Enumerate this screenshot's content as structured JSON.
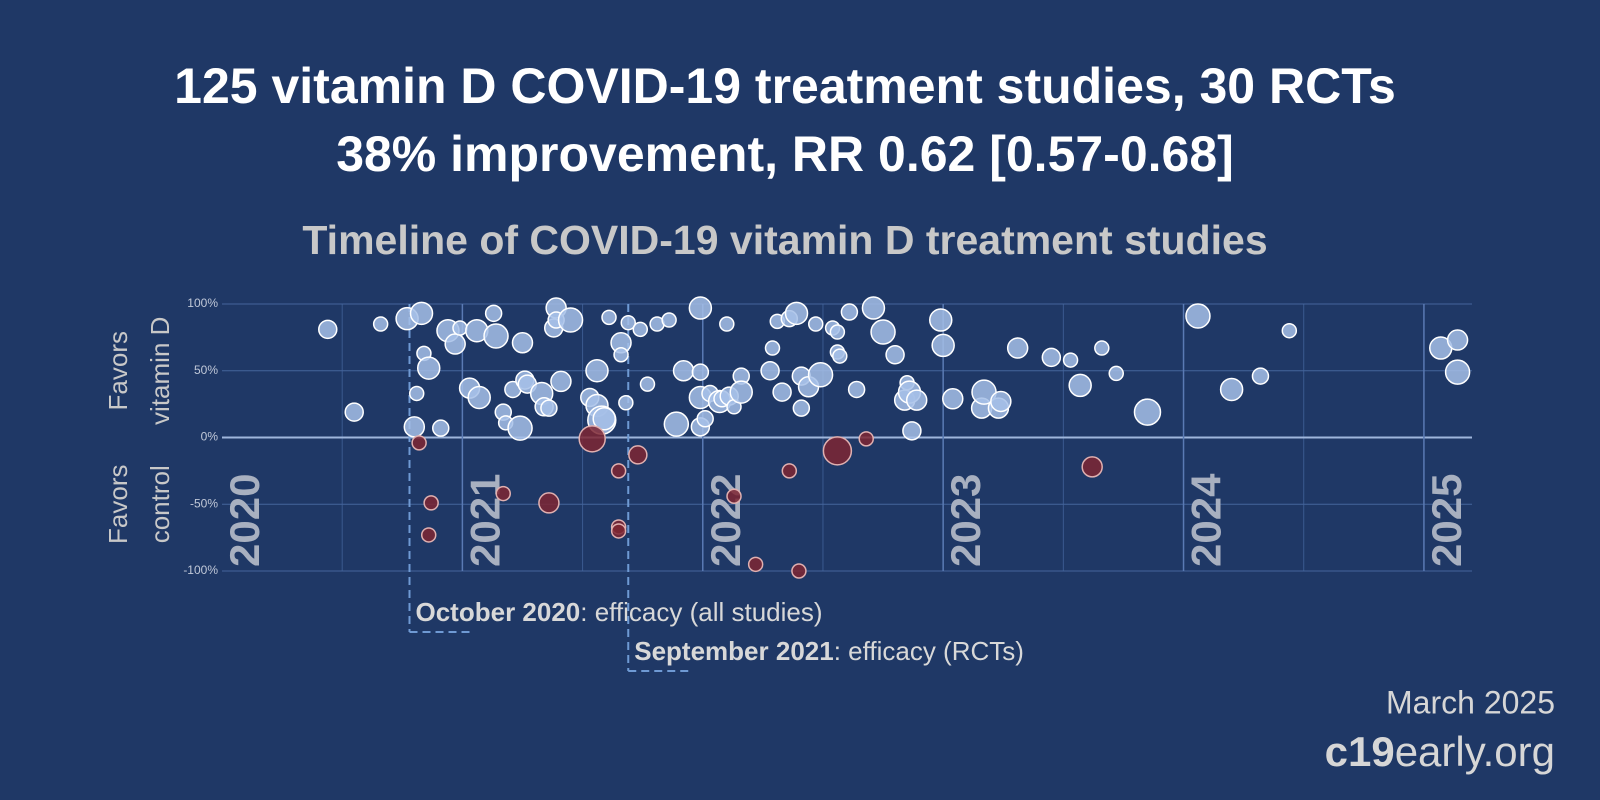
{
  "chart_data": {
    "type": "bubble",
    "title": [
      "125 vitamin D COVID-19 treatment studies, 30 RCTs",
      "38% improvement, RR 0.62 [0.57-0.68]"
    ],
    "subtitle": "Timeline of COVID-19 vitamin D treatment studies",
    "xlim": [
      2020,
      2025.2
    ],
    "xticks": [
      2020,
      2021,
      2022,
      2023,
      2024,
      2025
    ],
    "xgrid_minor": [
      2020.5,
      2021.5,
      2022.5,
      2023.5,
      2024.5
    ],
    "ylim": [
      -100,
      100
    ],
    "yticks": [
      {
        "value": 100,
        "label": "100%"
      },
      {
        "value": 50,
        "label": "50%"
      },
      {
        "value": 0,
        "label": "0%"
      },
      {
        "value": -50,
        "label": "-50%"
      },
      {
        "value": -100,
        "label": "-100%"
      }
    ],
    "grid": true,
    "y_labels": [
      {
        "lines": [
          "Favors",
          "vitamin D"
        ],
        "y": 50
      },
      {
        "lines": [
          "Favors",
          "control"
        ],
        "y": -50
      }
    ],
    "series": [
      {
        "color": "#a6c0e8",
        "stroke": "#ffffff",
        "x": [
          2020.44,
          2020.55,
          2020.66,
          2020.77,
          2020.83,
          2020.8,
          2020.81,
          2020.84,
          2020.86,
          2020.91,
          2020.94,
          2020.97,
          2020.99,
          2021.03,
          2021.06,
          2021.07,
          2021.13,
          2021.14,
          2021.17,
          2021.18,
          2021.21,
          2021.24,
          2021.25,
          2021.26,
          2021.27,
          2021.33,
          2021.34,
          2021.36,
          2021.38,
          2021.39,
          2021.39,
          2021.41,
          2021.45,
          2021.53,
          2021.56,
          2021.56,
          2021.58,
          2021.59,
          2021.61,
          2021.66,
          2021.66,
          2021.68,
          2021.69,
          2021.74,
          2021.77,
          2021.81,
          2021.86,
          2021.89,
          2021.92,
          2021.99,
          2021.99,
          2021.99,
          2021.99,
          2022.01,
          2022.03,
          2022.07,
          2022.08,
          2022.1,
          2022.11,
          2022.13,
          2022.16,
          2022.16,
          2022.28,
          2022.29,
          2022.31,
          2022.33,
          2022.36,
          2022.39,
          2022.41,
          2022.41,
          2022.44,
          2022.47,
          2022.49,
          2022.54,
          2022.56,
          2022.56,
          2022.57,
          2022.61,
          2022.64,
          2022.71,
          2022.75,
          2022.8,
          2022.84,
          2022.85,
          2022.86,
          2022.87,
          2022.89,
          2022.99,
          2023.0,
          2023.04,
          2023.16,
          2023.17,
          2023.23,
          2023.24,
          2023.31,
          2023.45,
          2023.53,
          2023.57,
          2023.66,
          2023.72,
          2023.85,
          2024.06,
          2024.2,
          2024.32,
          2024.44,
          2025.07,
          2025.14,
          2025.14
        ],
        "values": [
          81,
          19,
          85,
          89,
          93,
          8,
          33,
          63,
          52,
          7,
          80,
          70,
          82,
          37,
          80,
          30,
          93,
          76,
          19,
          11,
          36,
          7,
          71,
          43,
          40,
          33,
          23,
          22,
          82,
          97,
          88,
          42,
          88,
          30,
          24,
          50,
          13,
          14,
          90,
          71,
          62,
          26,
          86,
          81,
          40,
          85,
          88,
          10,
          50,
          97,
          49,
          8,
          30,
          14,
          33,
          27,
          29,
          85,
          31,
          23,
          46,
          34,
          50,
          67,
          87,
          34,
          89,
          93,
          22,
          46,
          38,
          85,
          47,
          82,
          79,
          64,
          61,
          94,
          36,
          97,
          79,
          62,
          28,
          41,
          34,
          5,
          28,
          88,
          69,
          29,
          22,
          34,
          22,
          27,
          67,
          60,
          58,
          39,
          67,
          48,
          19,
          91,
          36,
          46,
          80,
          67,
          73,
          49
        ],
        "sizes": [
          9,
          9,
          7,
          11,
          11,
          10,
          7,
          7,
          11,
          8,
          11,
          10,
          7,
          10,
          11,
          11,
          8,
          12,
          8,
          7,
          8,
          12,
          10,
          9,
          9,
          11,
          9,
          8,
          9,
          10,
          8,
          10,
          12,
          9,
          11,
          11,
          14,
          11,
          7,
          10,
          7,
          7,
          7,
          7,
          7,
          7,
          7,
          12,
          10,
          11,
          8,
          9,
          11,
          8,
          8,
          11,
          8,
          7,
          9,
          7,
          8,
          11,
          9,
          7,
          7,
          9,
          8,
          11,
          8,
          9,
          10,
          7,
          12,
          7,
          7,
          7,
          7,
          8,
          8,
          11,
          12,
          9,
          10,
          7,
          11,
          9,
          10,
          11,
          11,
          10,
          10,
          12,
          10,
          10,
          10,
          9,
          7,
          11,
          7,
          7,
          13,
          12,
          11,
          8,
          7,
          11,
          10,
          12
        ]
      },
      {
        "color": "#7e2632",
        "stroke": "#e0b0b0",
        "x": [
          2020.82,
          2020.87,
          2020.86,
          2021.17,
          2021.36,
          2021.54,
          2021.65,
          2021.65,
          2021.65,
          2021.73,
          2022.13,
          2022.22,
          2022.36,
          2022.4,
          2022.56,
          2022.68,
          2023.62
        ],
        "values": [
          -4,
          -49,
          -73,
          -42,
          -49,
          -1,
          -25,
          -67,
          -70,
          -13,
          -44,
          -95,
          -25,
          -100,
          -10,
          -1,
          -22
        ],
        "sizes": [
          7,
          7,
          7,
          7,
          10,
          13,
          7,
          7,
          7,
          9,
          7,
          7,
          7,
          7,
          14,
          7,
          10
        ]
      }
    ],
    "annotations": [
      {
        "x": 2020.78,
        "bold": "October 2020",
        "text": ": efficacy (all studies)"
      },
      {
        "x": 2021.69,
        "bold": "September 2021",
        "text": ": efficacy (RCTs)"
      }
    ]
  },
  "footer": {
    "date": "March 2025",
    "site_bold": "c19",
    "site_rest": "early.org"
  }
}
